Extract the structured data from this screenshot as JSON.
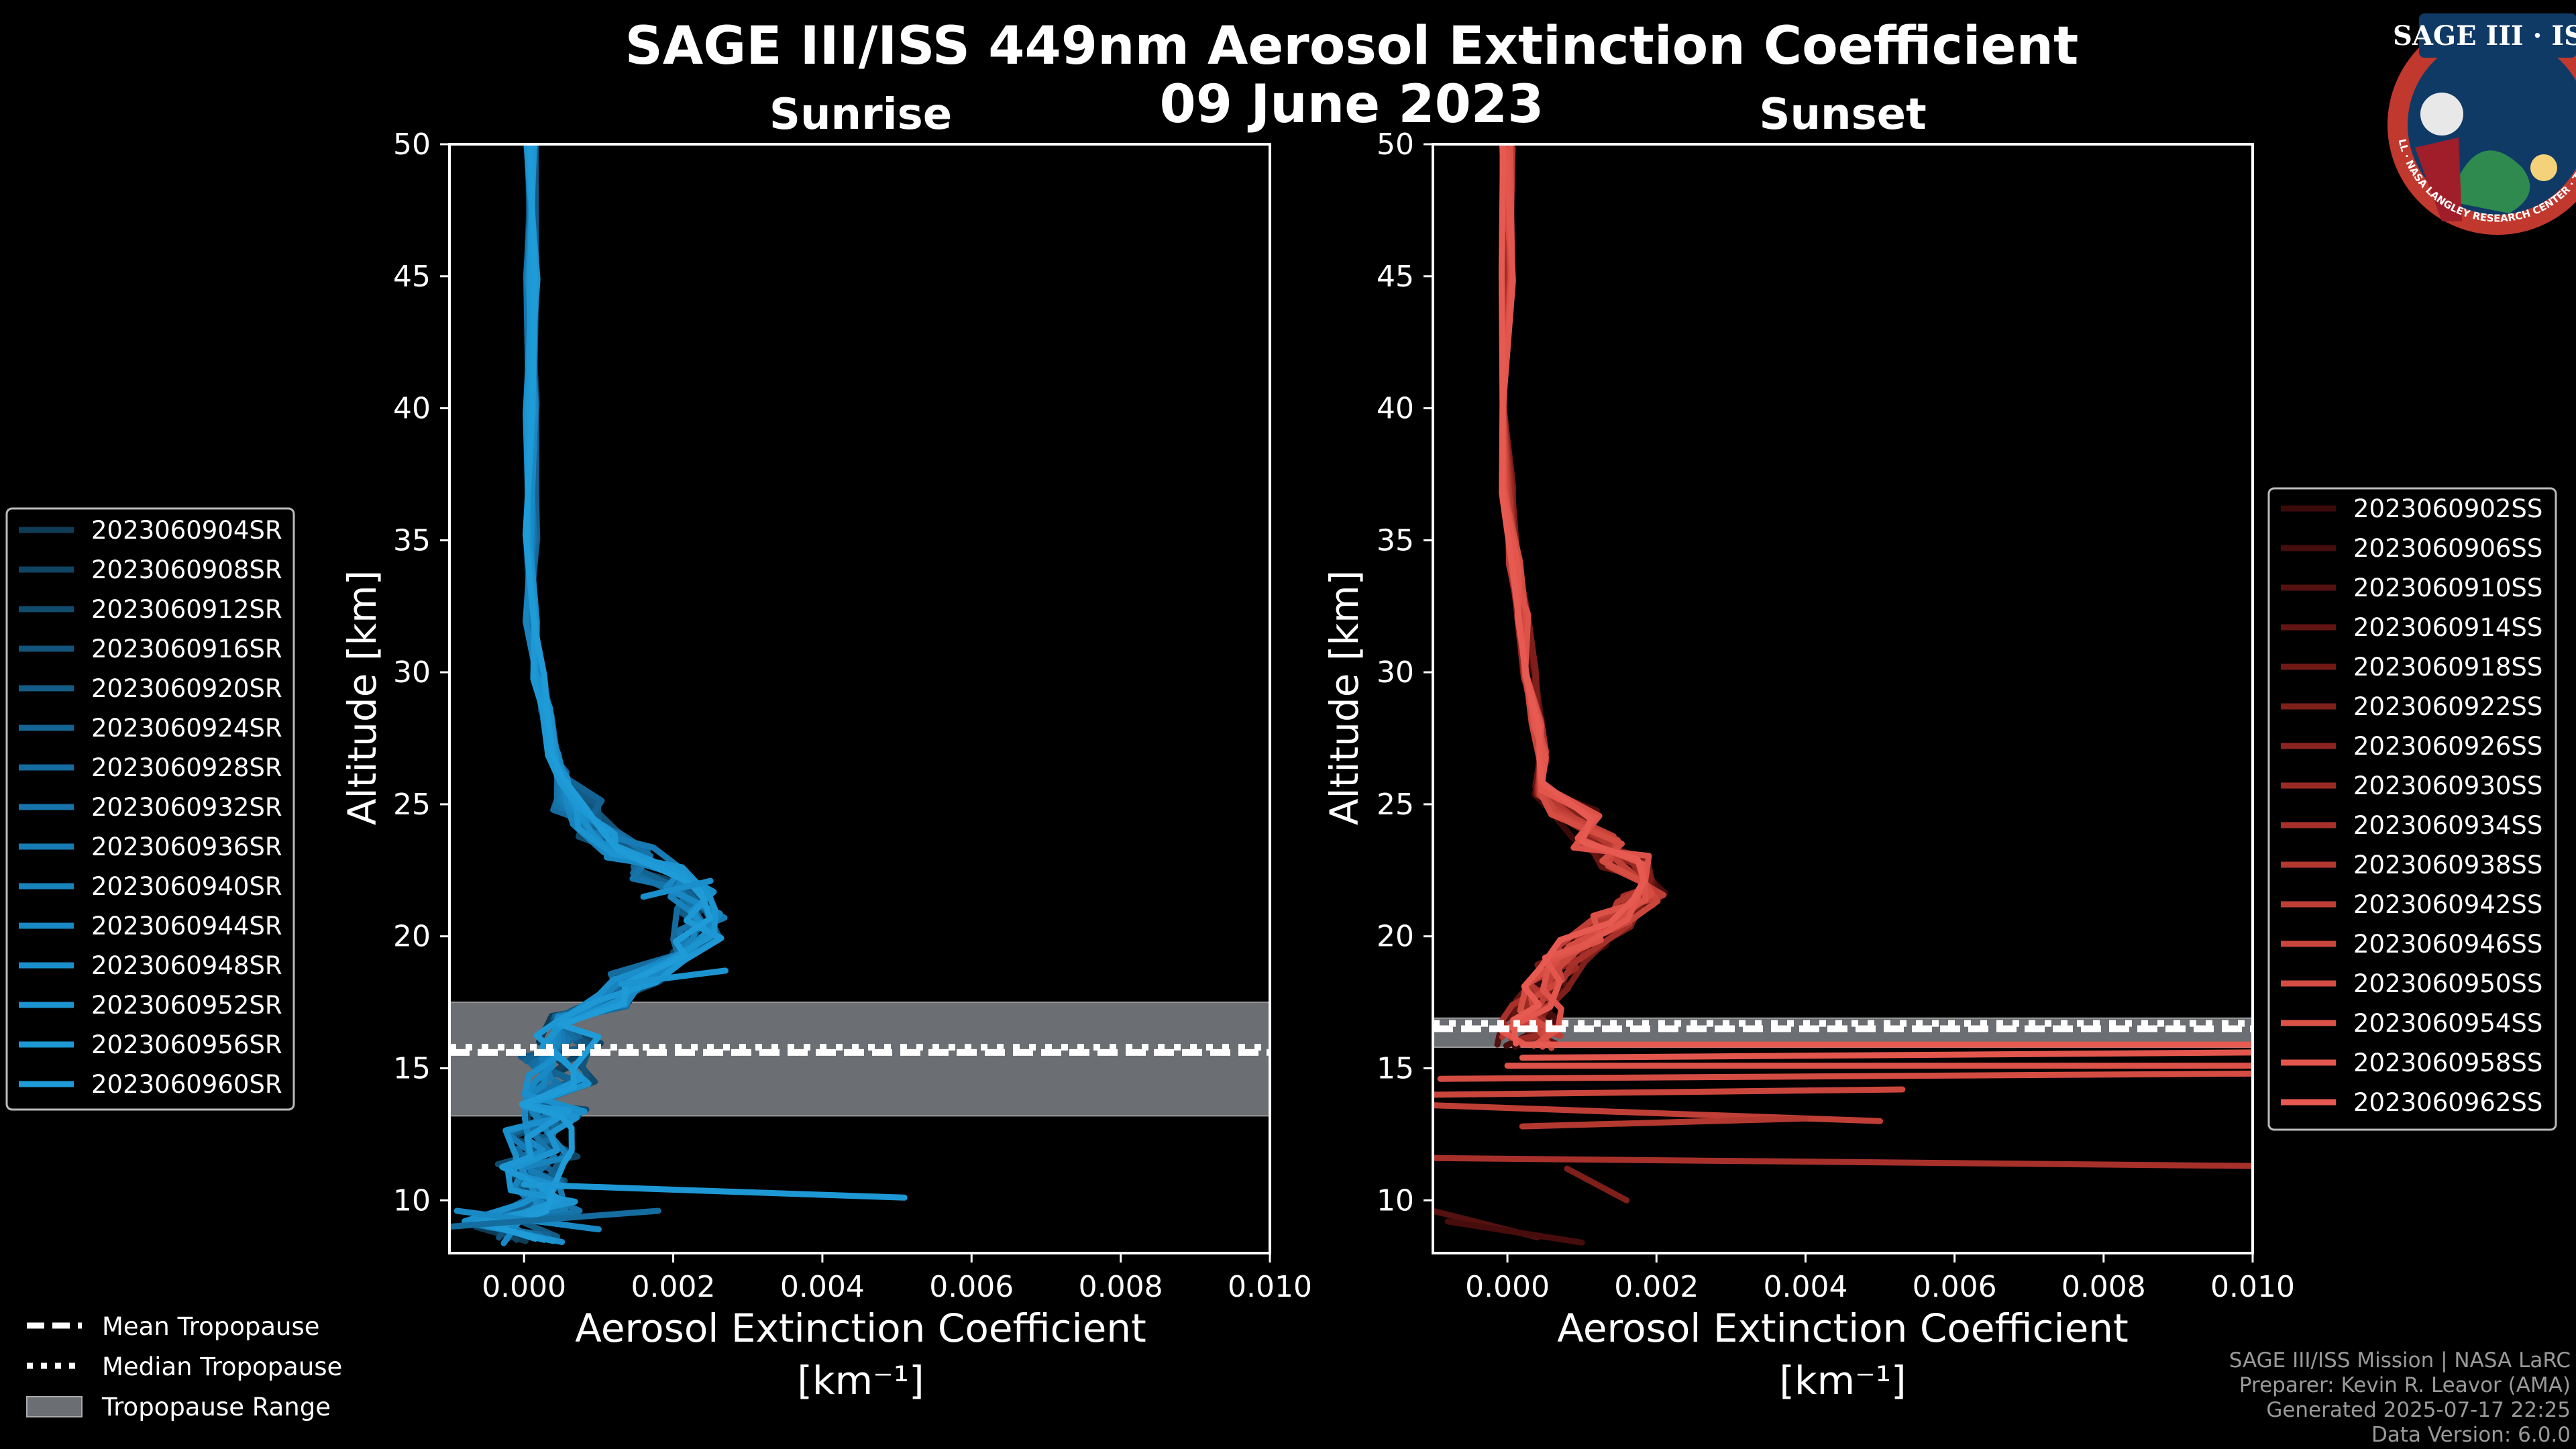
{
  "header": {
    "title_line1": "SAGE III/ISS 449nm Aerosol Extinction Coefficient",
    "title_line2": "09 June 2023"
  },
  "logo": {
    "text": "SAGE III · ISS",
    "ring_text": "BALL · NASA LANGLEY RESEARCH CENTER · TAS-I · ESA"
  },
  "credits": {
    "line1": "SAGE III/ISS Mission | NASA LaRC",
    "line2": "Preparer: Kevin R. Leavor (AMA)",
    "line3": "Generated 2025-07-17 22:25",
    "line4": "Data Version: 6.0.0"
  },
  "tropopause_legend": {
    "mean": "Mean Tropopause",
    "median": "Median Tropopause",
    "range": "Tropopause Range"
  },
  "colors": {
    "sunrise": "#1f9ad6",
    "sunset": "#e0524a",
    "tropo_band": "#6b6e72"
  },
  "chart_data": [
    {
      "type": "line",
      "title": "Sunrise",
      "xlabel": "Aerosol Extinction Coefficient",
      "xunit": "[km⁻¹]",
      "ylabel": "Altitude [km]",
      "xlim": [
        -0.001,
        0.01
      ],
      "ylim": [
        8,
        50
      ],
      "xticks": [
        "0.000",
        "0.002",
        "0.004",
        "0.006",
        "0.008",
        "0.010"
      ],
      "xtick_values": [
        0,
        0.002,
        0.004,
        0.006,
        0.008,
        0.01
      ],
      "yticks": [
        "10",
        "15",
        "20",
        "25",
        "30",
        "35",
        "40",
        "45",
        "50"
      ],
      "ytick_values": [
        10,
        15,
        20,
        25,
        30,
        35,
        40,
        45,
        50
      ],
      "tropopause": {
        "mean": 15.6,
        "median": 15.8,
        "range": [
          13.2,
          17.5
        ]
      },
      "series": [
        {
          "name": "2023060904SR",
          "color": "#0f3c57"
        },
        {
          "name": "2023060908SR",
          "color": "#104463"
        },
        {
          "name": "2023060912SR",
          "color": "#114c6f"
        },
        {
          "name": "2023060916SR",
          "color": "#12547b"
        },
        {
          "name": "2023060920SR",
          "color": "#135c87"
        },
        {
          "name": "2023060924SR",
          "color": "#146493"
        },
        {
          "name": "2023060928SR",
          "color": "#156c9f"
        },
        {
          "name": "2023060932SR",
          "color": "#1674ab"
        },
        {
          "name": "2023060936SR",
          "color": "#177cb5"
        },
        {
          "name": "2023060940SR",
          "color": "#1883bd"
        },
        {
          "name": "2023060944SR",
          "color": "#1989c5"
        },
        {
          "name": "2023060948SR",
          "color": "#1a8fcb"
        },
        {
          "name": "2023060952SR",
          "color": "#1b94d0"
        },
        {
          "name": "2023060956SR",
          "color": "#1d98d4"
        },
        {
          "name": "2023060960SR",
          "color": "#1f9bd7"
        }
      ],
      "profile_nominal": [
        [
          0.0001,
          8.6
        ],
        [
          -0.0004,
          9.2
        ],
        [
          0.0003,
          9.8
        ],
        [
          0.0002,
          10.5
        ],
        [
          0.0001,
          11.2
        ],
        [
          0.0003,
          11.8
        ],
        [
          0.0002,
          12.5
        ],
        [
          0.0004,
          13.2
        ],
        [
          0.0002,
          13.8
        ],
        [
          0.0005,
          14.5
        ],
        [
          0.0004,
          15.2
        ],
        [
          0.0006,
          16.0
        ],
        [
          0.0008,
          16.8
        ],
        [
          0.0011,
          17.6
        ],
        [
          0.0015,
          18.4
        ],
        [
          0.002,
          19.2
        ],
        [
          0.0023,
          20.0
        ],
        [
          0.0024,
          20.8
        ],
        [
          0.0022,
          21.6
        ],
        [
          0.0018,
          22.4
        ],
        [
          0.0014,
          23.2
        ],
        [
          0.001,
          24.0
        ],
        [
          0.0007,
          25.0
        ],
        [
          0.0005,
          26.0
        ],
        [
          0.0004,
          27.0
        ],
        [
          0.0003,
          28.5
        ],
        [
          0.0002,
          30.0
        ],
        [
          0.0001,
          32.0
        ],
        [
          0.0001,
          35.0
        ],
        [
          0.0001,
          40.0
        ],
        [
          0.0001,
          45.0
        ],
        [
          0.0001,
          50.0
        ]
      ],
      "spikes": [
        {
          "series": 13,
          "points": [
            [
              0.0,
              10.6
            ],
            [
              0.0051,
              10.1
            ]
          ]
        },
        {
          "series": 10,
          "points": [
            [
              -0.0009,
              9.6
            ],
            [
              0.001,
              8.9
            ]
          ]
        },
        {
          "series": 6,
          "points": [
            [
              -0.001,
              9.0
            ],
            [
              0.0018,
              9.6
            ]
          ]
        },
        {
          "series": 12,
          "points": [
            [
              0.0013,
              18.2
            ],
            [
              0.0027,
              18.7
            ]
          ]
        },
        {
          "series": 11,
          "points": [
            [
              0.0016,
              21.5
            ],
            [
              0.0025,
              22.1
            ]
          ]
        }
      ]
    },
    {
      "type": "line",
      "title": "Sunset",
      "xlabel": "Aerosol Extinction Coefficient",
      "xunit": "[km⁻¹]",
      "ylabel": "Altitude [km]",
      "xlim": [
        -0.001,
        0.01
      ],
      "ylim": [
        8,
        50
      ],
      "xticks": [
        "0.000",
        "0.002",
        "0.004",
        "0.006",
        "0.008",
        "0.010"
      ],
      "xtick_values": [
        0,
        0.002,
        0.004,
        0.006,
        0.008,
        0.01
      ],
      "yticks": [
        "10",
        "15",
        "20",
        "25",
        "30",
        "35",
        "40",
        "45",
        "50"
      ],
      "ytick_values": [
        10,
        15,
        20,
        25,
        30,
        35,
        40,
        45,
        50
      ],
      "tropopause": {
        "mean": 16.5,
        "median": 16.7,
        "range": [
          15.8,
          16.9
        ]
      },
      "series": [
        {
          "name": "2023060902SS",
          "color": "#3a0a0a"
        },
        {
          "name": "2023060906SS",
          "color": "#470d0c"
        },
        {
          "name": "2023060910SS",
          "color": "#54110f"
        },
        {
          "name": "2023060914SS",
          "color": "#621512"
        },
        {
          "name": "2023060918SS",
          "color": "#701a16"
        },
        {
          "name": "2023060922SS",
          "color": "#7e1f1a"
        },
        {
          "name": "2023060926SS",
          "color": "#8c251f"
        },
        {
          "name": "2023060930SS",
          "color": "#9a2b24"
        },
        {
          "name": "2023060934SS",
          "color": "#a7312a"
        },
        {
          "name": "2023060938SS",
          "color": "#b33830"
        },
        {
          "name": "2023060942SS",
          "color": "#bf3f36"
        },
        {
          "name": "2023060946SS",
          "color": "#ca463c"
        },
        {
          "name": "2023060950SS",
          "color": "#d44c42"
        },
        {
          "name": "2023060954SS",
          "color": "#dc5148"
        },
        {
          "name": "2023060958SS",
          "color": "#e2564d"
        },
        {
          "name": "2023060962SS",
          "color": "#e75a51"
        }
      ],
      "profile_nominal": [
        [
          0.0003,
          16.0
        ],
        [
          0.0003,
          16.6
        ],
        [
          0.0004,
          17.4
        ],
        [
          0.0005,
          18.2
        ],
        [
          0.0007,
          19.0
        ],
        [
          0.001,
          19.8
        ],
        [
          0.0014,
          20.6
        ],
        [
          0.0018,
          21.4
        ],
        [
          0.0019,
          22.0
        ],
        [
          0.0016,
          22.8
        ],
        [
          0.0012,
          23.6
        ],
        [
          0.0009,
          24.6
        ],
        [
          0.0007,
          25.6
        ],
        [
          0.0005,
          26.8
        ],
        [
          0.0004,
          28.0
        ],
        [
          0.0003,
          30.0
        ],
        [
          0.0002,
          32.0
        ],
        [
          0.0001,
          34.0
        ],
        [
          0.0,
          37.0
        ],
        [
          0.0,
          40.0
        ],
        [
          0.0,
          45.0
        ],
        [
          0.0,
          50.0
        ]
      ],
      "spikes": [
        {
          "series": 15,
          "points": [
            [
              0.0002,
              15.9
            ],
            [
              0.01,
              15.9
            ]
          ]
        },
        {
          "series": 14,
          "points": [
            [
              0.0002,
              15.4
            ],
            [
              0.01,
              15.6
            ]
          ]
        },
        {
          "series": 13,
          "points": [
            [
              0.0,
              15.1
            ],
            [
              0.01,
              15.1
            ]
          ]
        },
        {
          "series": 12,
          "points": [
            [
              -0.0009,
              14.6
            ],
            [
              0.01,
              14.8
            ]
          ]
        },
        {
          "series": 11,
          "points": [
            [
              -0.001,
              14.0
            ],
            [
              0.0053,
              14.2
            ]
          ]
        },
        {
          "series": 10,
          "points": [
            [
              -0.001,
              13.6
            ],
            [
              0.005,
              13.0
            ]
          ]
        },
        {
          "series": 9,
          "points": [
            [
              0.0002,
              12.8
            ],
            [
              0.004,
              13.1
            ]
          ]
        },
        {
          "series": 8,
          "points": [
            [
              -0.001,
              11.6
            ],
            [
              0.01,
              11.3
            ]
          ]
        },
        {
          "series": 5,
          "points": [
            [
              0.0008,
              11.2
            ],
            [
              0.0016,
              10.0
            ]
          ]
        },
        {
          "series": 2,
          "points": [
            [
              -0.001,
              9.6
            ],
            [
              0.0004,
              8.6
            ]
          ]
        },
        {
          "series": 1,
          "points": [
            [
              -0.0008,
              9.2
            ],
            [
              0.001,
              8.4
            ]
          ]
        }
      ]
    }
  ]
}
